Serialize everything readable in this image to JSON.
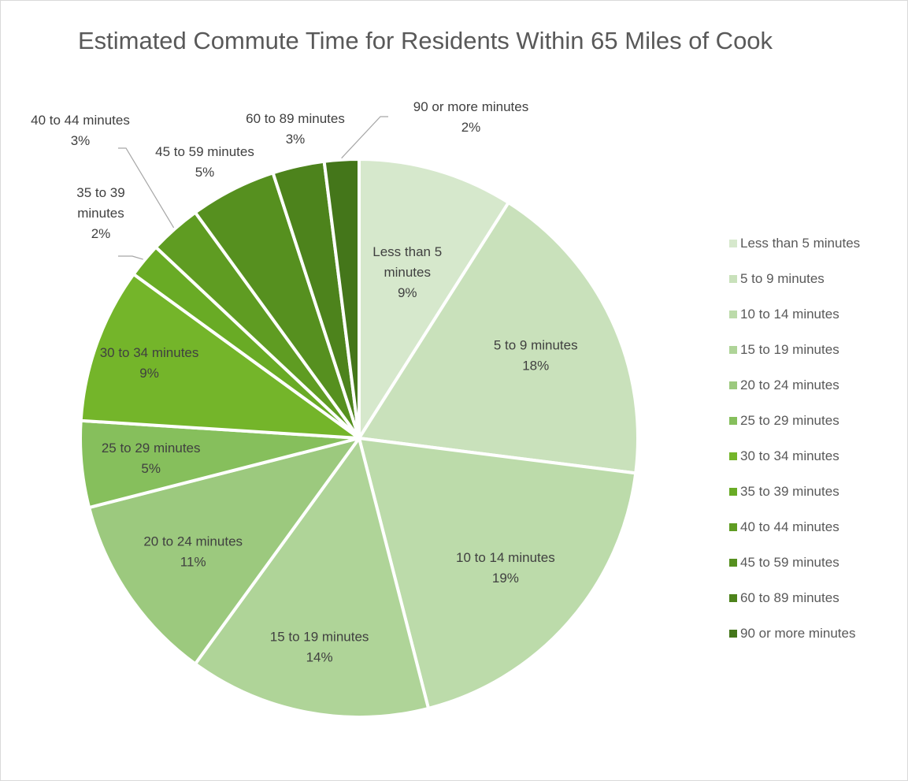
{
  "chart_data": {
    "type": "pie",
    "title": "Estimated Commute Time for Residents Within 65 Miles of Cook",
    "categories": [
      "Less than 5 minutes",
      "5 to 9 minutes",
      "10 to 14 minutes",
      "15 to 19 minutes",
      "20 to 24 minutes",
      "25 to 29 minutes",
      "30 to 34 minutes",
      "35 to 39 minutes",
      "40 to 44 minutes",
      "45 to 59 minutes",
      "60 to 89 minutes",
      "90 or more minutes"
    ],
    "values": [
      9,
      18,
      19,
      14,
      11,
      5,
      9,
      2,
      3,
      5,
      3,
      2
    ],
    "data_labels": [
      "9%",
      "18%",
      "19%",
      "14%",
      "11%",
      "5%",
      "9%",
      "2%",
      "3%",
      "5%",
      "3%",
      "2%"
    ],
    "colors": [
      "#d6e8cc",
      "#c9e1bb",
      "#bcdbaa",
      "#afd498",
      "#9cc97e",
      "#86bf5c",
      "#74b52a",
      "#69ab25",
      "#5f9c22",
      "#56901f",
      "#4d831c",
      "#44761a"
    ],
    "legend_position": "right"
  }
}
